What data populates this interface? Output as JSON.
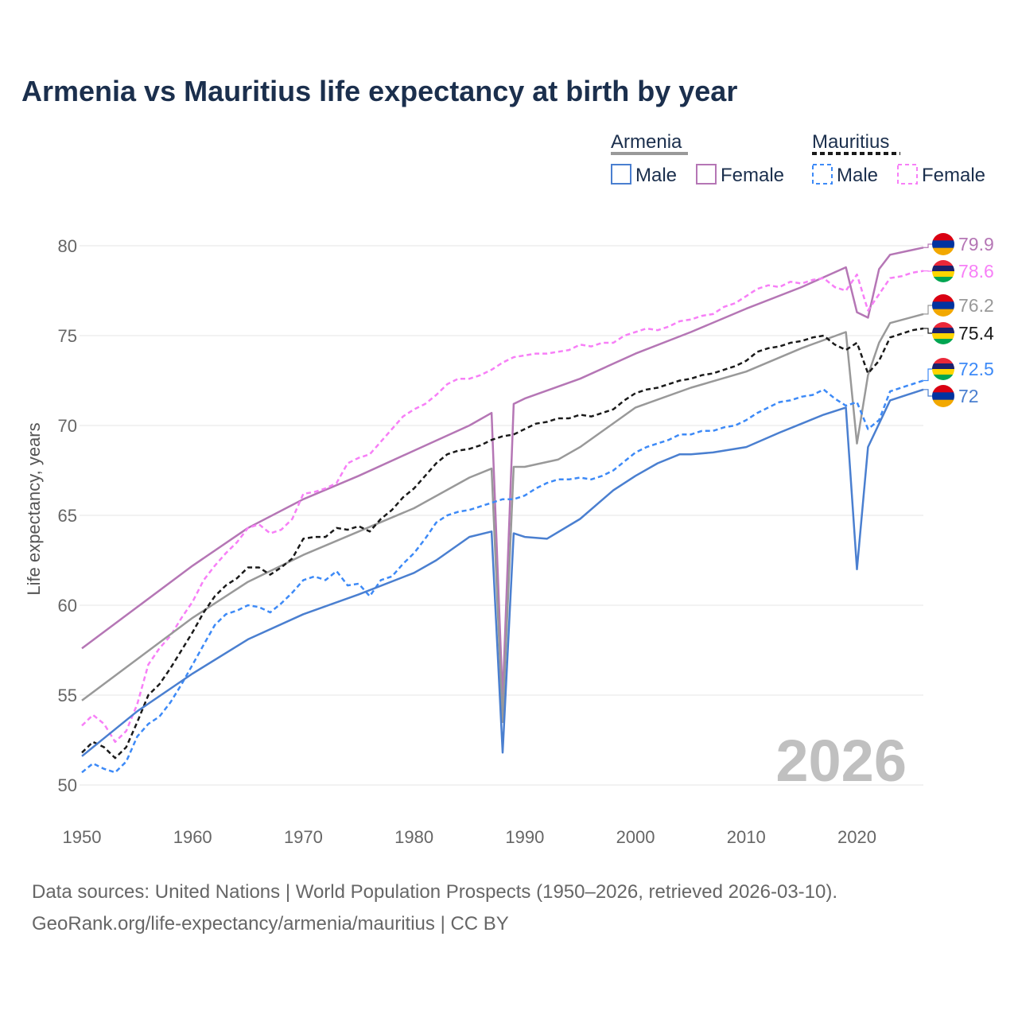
{
  "chart_data": {
    "type": "line",
    "title": "Armenia vs Mauritius life expectancy at birth by year",
    "xlabel": "",
    "ylabel": "Life expectancy, years",
    "xlim": [
      1950,
      2026
    ],
    "ylim": [
      50,
      80
    ],
    "x_ticks": [
      1950,
      1960,
      1970,
      1980,
      1990,
      2000,
      2010,
      2020
    ],
    "y_ticks": [
      50,
      55,
      60,
      65,
      70,
      75,
      80
    ],
    "grid": true,
    "year_watermark": "2026",
    "legend": {
      "placement": "top-right",
      "groups": [
        {
          "country": "Armenia",
          "male": "Male",
          "female": "Female"
        },
        {
          "country": "Mauritius",
          "male": "Male",
          "female": "Female"
        }
      ]
    },
    "series": [
      {
        "name": "Armenia Female",
        "country": "Armenia",
        "color": "#b576b5",
        "dashed": false,
        "end_label": "79.9",
        "flag": "armenia",
        "points": [
          [
            1950,
            57.6
          ],
          [
            1955,
            59.9
          ],
          [
            1960,
            62.2
          ],
          [
            1965,
            64.3
          ],
          [
            1970,
            65.9
          ],
          [
            1975,
            67.2
          ],
          [
            1980,
            68.6
          ],
          [
            1985,
            70.0
          ],
          [
            1987,
            70.7
          ],
          [
            1988,
            54.8
          ],
          [
            1989,
            71.2
          ],
          [
            1990,
            71.5
          ],
          [
            1995,
            72.6
          ],
          [
            2000,
            74.0
          ],
          [
            2005,
            75.2
          ],
          [
            2010,
            76.5
          ],
          [
            2015,
            77.7
          ],
          [
            2019,
            78.8
          ],
          [
            2020,
            76.3
          ],
          [
            2021,
            76.0
          ],
          [
            2022,
            78.7
          ],
          [
            2023,
            79.5
          ],
          [
            2026,
            79.9
          ]
        ]
      },
      {
        "name": "Mauritius Female",
        "country": "Mauritius",
        "color": "#f77ff7",
        "dashed": true,
        "end_label": "78.6",
        "flag": "mauritius",
        "values": [
          53.3,
          53.9,
          53.4,
          52.4,
          53.0,
          54.5,
          56.7,
          57.6,
          58.3,
          59.3,
          60.2,
          61.4,
          62.2,
          62.9,
          63.5,
          64.3,
          64.5,
          64.0,
          64.2,
          64.8,
          66.2,
          66.3,
          66.5,
          66.8,
          67.9,
          68.2,
          68.4,
          69.1,
          69.8,
          70.5,
          70.9,
          71.2,
          71.7,
          72.3,
          72.6,
          72.6,
          72.8,
          73.1,
          73.5,
          73.8,
          73.9,
          74.0,
          74.0,
          74.1,
          74.2,
          74.5,
          74.4,
          74.6,
          74.6,
          75.0,
          75.2,
          75.4,
          75.3,
          75.5,
          75.8,
          75.9,
          76.1,
          76.2,
          76.6,
          76.8,
          77.2,
          77.6,
          77.8,
          77.7,
          78.0,
          77.9,
          78.1,
          78.2,
          77.7,
          77.5,
          78.4,
          76.4,
          77.3,
          78.2,
          78.3,
          78.5,
          78.6
        ]
      },
      {
        "name": "Armenia",
        "country": "Armenia",
        "color": "#999999",
        "dashed": false,
        "end_label": "76.2",
        "flag": "armenia",
        "points": [
          [
            1950,
            54.7
          ],
          [
            1955,
            57.0
          ],
          [
            1960,
            59.3
          ],
          [
            1965,
            61.3
          ],
          [
            1970,
            62.8
          ],
          [
            1975,
            64.1
          ],
          [
            1980,
            65.4
          ],
          [
            1985,
            67.1
          ],
          [
            1987,
            67.6
          ],
          [
            1988,
            53.5
          ],
          [
            1989,
            67.7
          ],
          [
            1990,
            67.7
          ],
          [
            1993,
            68.1
          ],
          [
            1995,
            68.8
          ],
          [
            2000,
            71.0
          ],
          [
            2005,
            72.1
          ],
          [
            2010,
            73.0
          ],
          [
            2015,
            74.3
          ],
          [
            2019,
            75.2
          ],
          [
            2020,
            69.0
          ],
          [
            2021,
            72.8
          ],
          [
            2022,
            74.6
          ],
          [
            2023,
            75.7
          ],
          [
            2026,
            76.2
          ]
        ]
      },
      {
        "name": "Mauritius",
        "country": "Mauritius",
        "color": "#1a1a1a",
        "dashed": true,
        "end_label": "75.4",
        "flag": "mauritius",
        "values": [
          51.8,
          52.4,
          52.1,
          51.5,
          52.1,
          53.5,
          55.0,
          55.6,
          56.5,
          57.5,
          58.5,
          59.6,
          60.5,
          61.1,
          61.5,
          62.1,
          62.1,
          61.7,
          62.1,
          62.6,
          63.7,
          63.8,
          63.8,
          64.3,
          64.2,
          64.4,
          64.1,
          64.8,
          65.3,
          66.0,
          66.5,
          67.2,
          67.9,
          68.4,
          68.6,
          68.7,
          68.9,
          69.2,
          69.4,
          69.5,
          69.8,
          70.1,
          70.2,
          70.4,
          70.4,
          70.6,
          70.5,
          70.7,
          70.9,
          71.4,
          71.8,
          72.0,
          72.1,
          72.3,
          72.5,
          72.6,
          72.8,
          72.9,
          73.1,
          73.3,
          73.6,
          74.1,
          74.3,
          74.4,
          74.6,
          74.7,
          74.9,
          75.0,
          74.5,
          74.2,
          74.6,
          72.9,
          73.6,
          74.9,
          75.1,
          75.3,
          75.4
        ]
      },
      {
        "name": "Mauritius Male",
        "country": "Mauritius",
        "color": "#3d8af7",
        "dashed": true,
        "end_label": "72.5",
        "flag": "mauritius",
        "values": [
          50.7,
          51.2,
          50.9,
          50.7,
          51.3,
          52.7,
          53.4,
          53.8,
          54.6,
          55.6,
          56.7,
          57.8,
          58.9,
          59.5,
          59.7,
          60.0,
          59.9,
          59.6,
          60.1,
          60.7,
          61.4,
          61.6,
          61.4,
          61.9,
          61.1,
          61.2,
          60.5,
          61.4,
          61.6,
          62.3,
          62.9,
          63.7,
          64.6,
          65.0,
          65.2,
          65.3,
          65.5,
          65.7,
          65.9,
          65.9,
          66.1,
          66.5,
          66.8,
          67.0,
          67.0,
          67.1,
          67.0,
          67.2,
          67.5,
          68.0,
          68.5,
          68.8,
          69.0,
          69.2,
          69.5,
          69.5,
          69.7,
          69.7,
          69.9,
          70.0,
          70.3,
          70.7,
          71.0,
          71.3,
          71.4,
          71.6,
          71.7,
          72.0,
          71.5,
          71.1,
          71.3,
          69.8,
          70.3,
          71.9,
          72.1,
          72.3,
          72.5
        ]
      },
      {
        "name": "Armenia Male",
        "country": "Armenia",
        "color": "#4a7fd0",
        "dashed": false,
        "end_label": "72",
        "flag": "armenia",
        "points": [
          [
            1950,
            51.6
          ],
          [
            1955,
            54.1
          ],
          [
            1960,
            56.2
          ],
          [
            1965,
            58.1
          ],
          [
            1970,
            59.5
          ],
          [
            1975,
            60.6
          ],
          [
            1980,
            61.8
          ],
          [
            1982,
            62.5
          ],
          [
            1985,
            63.8
          ],
          [
            1987,
            64.1
          ],
          [
            1988,
            51.8
          ],
          [
            1989,
            64.0
          ],
          [
            1990,
            63.8
          ],
          [
            1992,
            63.7
          ],
          [
            1995,
            64.8
          ],
          [
            1998,
            66.4
          ],
          [
            2000,
            67.2
          ],
          [
            2002,
            67.9
          ],
          [
            2004,
            68.4
          ],
          [
            2005,
            68.4
          ],
          [
            2007,
            68.5
          ],
          [
            2010,
            68.8
          ],
          [
            2013,
            69.6
          ],
          [
            2015,
            70.1
          ],
          [
            2017,
            70.6
          ],
          [
            2019,
            71.0
          ],
          [
            2020,
            62.0
          ],
          [
            2021,
            68.8
          ],
          [
            2023,
            71.4
          ],
          [
            2026,
            72.0
          ]
        ]
      }
    ]
  },
  "sources": {
    "line1": "Data sources: United Nations | World Population Prospects (1950–2026, retrieved 2026-03-10).",
    "line2": "GeoRank.org/life-expectancy/armenia/mauritius | CC BY"
  }
}
